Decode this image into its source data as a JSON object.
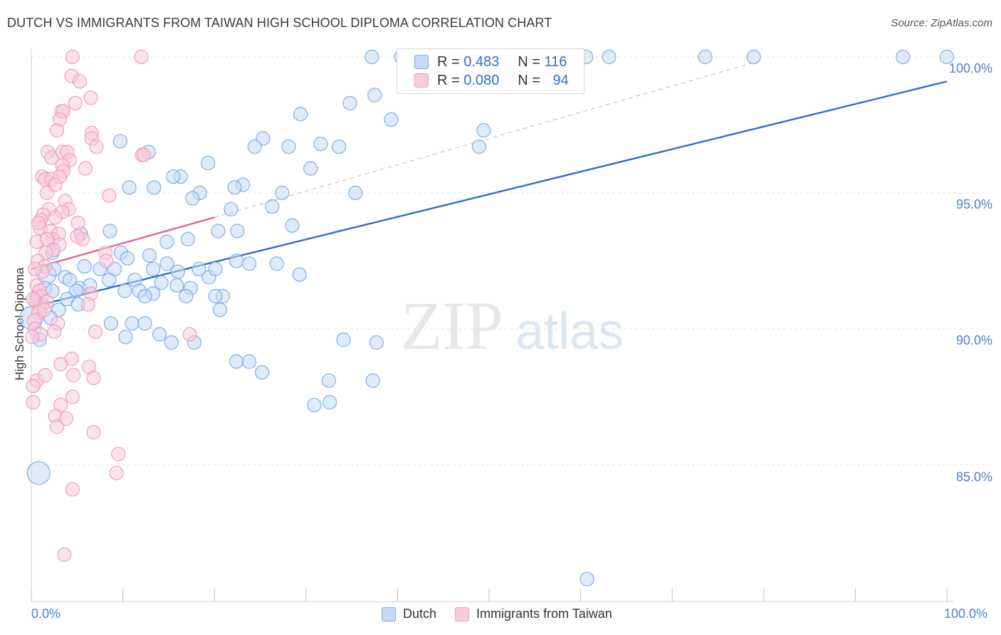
{
  "chart_data": {
    "type": "scatter",
    "title": "DUTCH VS IMMIGRANTS FROM TAIWAN HIGH SCHOOL DIPLOMA CORRELATION CHART",
    "source": "Source: ZipAtlas.com",
    "xlabel": "",
    "ylabel": "High School Diploma",
    "xlim": [
      0,
      100
    ],
    "ylim": [
      80.6,
      100.8
    ],
    "x_tick_labels": [
      "0.0%",
      "100.0%"
    ],
    "y_ticks": [
      85,
      90,
      95,
      100
    ],
    "y_tick_labels": [
      "85.0%",
      "90.0%",
      "95.0%",
      "100.0%"
    ],
    "watermark": "ZIPatlas",
    "legend": {
      "rows": [
        {
          "r_label": "R =",
          "r_value": "0.483",
          "n_label": "N =",
          "n_value": "116"
        },
        {
          "r_label": "R =",
          "r_value": "0.080",
          "n_label": "N =",
          "n_value": "94"
        }
      ]
    },
    "series": [
      {
        "name": "Dutch",
        "color": "#7eaee6",
        "fill": "#c5daf5",
        "trend": {
          "x": [
            0,
            100
          ],
          "y": [
            90.8,
            99.1
          ],
          "color": "#2f6fd0"
        },
        "trend_ext": {
          "x": [
            20,
            80
          ],
          "y": [
            94.1,
            99.9
          ]
        },
        "points": [
          [
            37.2,
            100
          ],
          [
            52.3,
            100
          ],
          [
            60.6,
            100
          ],
          [
            63.1,
            100
          ],
          [
            73.6,
            100
          ],
          [
            78.9,
            100
          ],
          [
            95.2,
            100
          ],
          [
            100,
            100
          ],
          [
            40.4,
            100
          ],
          [
            37.5,
            98.6
          ],
          [
            34.8,
            98.3
          ],
          [
            39.3,
            97.7
          ],
          [
            29.4,
            97.9
          ],
          [
            49.4,
            97.3
          ],
          [
            48.9,
            96.7
          ],
          [
            25.3,
            97
          ],
          [
            24.4,
            96.7
          ],
          [
            28.1,
            96.7
          ],
          [
            31.6,
            96.8
          ],
          [
            33.6,
            96.7
          ],
          [
            9.7,
            96.9
          ],
          [
            12.8,
            96.5
          ],
          [
            30.5,
            95.9
          ],
          [
            19.3,
            96.1
          ],
          [
            16.3,
            95.6
          ],
          [
            15.5,
            95.6
          ],
          [
            10.7,
            95.2
          ],
          [
            13.4,
            95.2
          ],
          [
            23.1,
            95.3
          ],
          [
            22.2,
            95.2
          ],
          [
            27.4,
            95
          ],
          [
            35.4,
            95
          ],
          [
            18.4,
            95
          ],
          [
            17.6,
            94.8
          ],
          [
            21.8,
            94.4
          ],
          [
            26.3,
            94.5
          ],
          [
            28.5,
            93.8
          ],
          [
            22.5,
            93.6
          ],
          [
            20.4,
            93.6
          ],
          [
            17.1,
            93.3
          ],
          [
            14.8,
            93.2
          ],
          [
            8.6,
            93.6
          ],
          [
            5.4,
            93.5
          ],
          [
            2.3,
            92.8
          ],
          [
            9.8,
            92.8
          ],
          [
            12.9,
            92.7
          ],
          [
            10.5,
            92.6
          ],
          [
            14.8,
            92.4
          ],
          [
            22.4,
            92.5
          ],
          [
            26.8,
            92.4
          ],
          [
            23.8,
            92.4
          ],
          [
            29.3,
            92
          ],
          [
            19.4,
            91.9
          ],
          [
            5.8,
            92.3
          ],
          [
            7.5,
            92.2
          ],
          [
            9.1,
            92.2
          ],
          [
            13.3,
            92.2
          ],
          [
            16,
            92.1
          ],
          [
            18.3,
            92.2
          ],
          [
            20.1,
            92.2
          ],
          [
            8.5,
            91.8
          ],
          [
            11.3,
            91.8
          ],
          [
            14.2,
            91.7
          ],
          [
            15.9,
            91.6
          ],
          [
            17.4,
            91.5
          ],
          [
            5.3,
            91.5
          ],
          [
            1.7,
            92
          ],
          [
            3.7,
            91.9
          ],
          [
            4.2,
            91.8
          ],
          [
            6.4,
            91.6
          ],
          [
            10.2,
            91.4
          ],
          [
            11.8,
            91.4
          ],
          [
            13.3,
            91.3
          ],
          [
            12.4,
            91.2
          ],
          [
            16.9,
            91.2
          ],
          [
            20.9,
            91.2
          ],
          [
            4.9,
            91.4
          ],
          [
            20.1,
            91.2
          ],
          [
            2.5,
            92.2
          ],
          [
            1.5,
            91.5
          ],
          [
            2.3,
            91.4
          ],
          [
            0.6,
            91.2
          ],
          [
            0.9,
            91
          ],
          [
            1.2,
            90.9
          ],
          [
            3.9,
            91.1
          ],
          [
            3,
            90.7
          ],
          [
            5.1,
            90.9
          ],
          [
            20.6,
            90.7
          ],
          [
            8.7,
            90.2
          ],
          [
            11,
            90.2
          ],
          [
            12.4,
            90.2
          ],
          [
            2.1,
            90.4
          ],
          [
            0,
            90.4
          ],
          [
            14,
            89.8
          ],
          [
            10.3,
            89.7
          ],
          [
            15.3,
            89.5
          ],
          [
            17.8,
            89.5
          ],
          [
            0.9,
            89.6
          ],
          [
            34.1,
            89.6
          ],
          [
            37.7,
            89.5
          ],
          [
            22.4,
            88.8
          ],
          [
            23.8,
            88.8
          ],
          [
            25.2,
            88.4
          ],
          [
            32.5,
            88.1
          ],
          [
            37.3,
            88.1
          ],
          [
            30.9,
            87.2
          ],
          [
            32.6,
            87.3
          ],
          [
            0.8,
            84.7
          ],
          [
            60.7,
            80.8
          ]
        ]
      },
      {
        "name": "Immigrants from Taiwan",
        "color": "#f0a0ba",
        "fill": "#f8cbda",
        "trend": {
          "x": [
            0,
            20
          ],
          "y": [
            92.2,
            94.1
          ],
          "color": "#e0659a"
        },
        "points": [
          [
            4.5,
            100
          ],
          [
            12,
            100
          ],
          [
            4.4,
            99.3
          ],
          [
            5.3,
            99.1
          ],
          [
            6.5,
            98.5
          ],
          [
            4.8,
            98.3
          ],
          [
            3.3,
            98
          ],
          [
            3.5,
            98
          ],
          [
            3.1,
            97.7
          ],
          [
            2.8,
            97.3
          ],
          [
            6.6,
            97.2
          ],
          [
            6.6,
            97
          ],
          [
            7.1,
            96.7
          ],
          [
            1.8,
            96.5
          ],
          [
            2.2,
            96.3
          ],
          [
            3.4,
            96.5
          ],
          [
            3.9,
            96.5
          ],
          [
            4.2,
            96.2
          ],
          [
            3.4,
            96
          ],
          [
            3.5,
            95.8
          ],
          [
            12.1,
            96.4
          ],
          [
            12.3,
            96.4
          ],
          [
            5.9,
            95.9
          ],
          [
            1.2,
            95.6
          ],
          [
            1.5,
            95.5
          ],
          [
            2.2,
            95.5
          ],
          [
            3.1,
            95.6
          ],
          [
            2.6,
            95.3
          ],
          [
            1.7,
            95
          ],
          [
            3.7,
            94.7
          ],
          [
            4.1,
            94.4
          ],
          [
            1.9,
            94.4
          ],
          [
            8.5,
            94.9
          ],
          [
            3.4,
            94.3
          ],
          [
            1.3,
            94.2
          ],
          [
            1,
            94
          ],
          [
            2.6,
            94.1
          ],
          [
            1,
            93.7
          ],
          [
            5.1,
            93.9
          ],
          [
            2.1,
            93.6
          ],
          [
            3,
            93.5
          ],
          [
            2.3,
            93.3
          ],
          [
            0.6,
            93.2
          ],
          [
            1.7,
            93.3
          ],
          [
            3.1,
            93.1
          ],
          [
            5.6,
            93.3
          ],
          [
            2.4,
            92.9
          ],
          [
            1.6,
            92.8
          ],
          [
            0.7,
            92.5
          ],
          [
            8.1,
            92.8
          ],
          [
            8.2,
            92.5
          ],
          [
            1.5,
            92.3
          ],
          [
            1.2,
            92.1
          ],
          [
            0.6,
            91.6
          ],
          [
            0.9,
            91.4
          ],
          [
            1.1,
            91.2
          ],
          [
            0.5,
            91
          ],
          [
            0.9,
            90.8
          ],
          [
            0.8,
            90.6
          ],
          [
            6.5,
            91.3
          ],
          [
            1.7,
            91
          ],
          [
            0.3,
            90.3
          ],
          [
            0.4,
            90
          ],
          [
            6.2,
            90.9
          ],
          [
            2.9,
            90.2
          ],
          [
            2.5,
            89.9
          ],
          [
            1,
            89.8
          ],
          [
            7,
            89.9
          ],
          [
            0.1,
            89.7
          ],
          [
            17.3,
            89.8
          ],
          [
            4.4,
            88.9
          ],
          [
            6.3,
            88.6
          ],
          [
            3.2,
            88.7
          ],
          [
            6.8,
            88.2
          ],
          [
            0.6,
            88.1
          ],
          [
            0.2,
            87.9
          ],
          [
            1.5,
            88.3
          ],
          [
            4.6,
            88.3
          ],
          [
            4.5,
            87.5
          ],
          [
            0.2,
            87.3
          ],
          [
            3.2,
            87.2
          ],
          [
            2.6,
            86.8
          ],
          [
            3.8,
            86.7
          ],
          [
            2.8,
            86.4
          ],
          [
            6.8,
            86.2
          ],
          [
            9.5,
            85.4
          ],
          [
            9.3,
            84.7
          ],
          [
            4.5,
            84.1
          ],
          [
            3.6,
            81.7
          ],
          [
            1.4,
            90.7
          ],
          [
            0.4,
            92.2
          ],
          [
            0.2,
            91.1
          ],
          [
            5,
            93.4
          ],
          [
            0.8,
            93.9
          ]
        ]
      }
    ]
  }
}
